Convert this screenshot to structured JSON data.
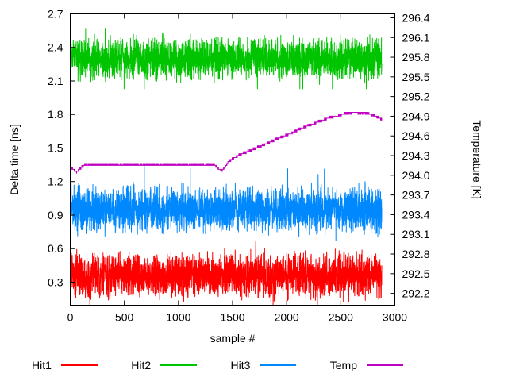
{
  "chart_data": {
    "type": "line",
    "title": "",
    "xlabel": "sample #",
    "ylabel_left": "Delta time [ns]",
    "ylabel_right": "Temperature [K]",
    "x_range": [
      0,
      3000
    ],
    "x_ticks": [
      0,
      500,
      1000,
      1500,
      2000,
      2500,
      3000
    ],
    "y_left_range": [
      0.094,
      2.7
    ],
    "y_left_ticks": [
      0.3,
      0.6,
      0.9,
      1.2,
      1.5,
      1.8,
      2.1,
      2.4,
      2.7
    ],
    "y_right_range": [
      292.02,
      296.46
    ],
    "y_right_ticks": [
      292.2,
      292.5,
      292.8,
      293.1,
      293.4,
      293.7,
      294.0,
      294.3,
      294.6,
      294.9,
      295.2,
      295.5,
      295.8,
      296.1,
      296.4
    ],
    "samples": 2880,
    "grid": false,
    "legend_position": "bottom",
    "axis_color": "#000000",
    "background": "#ffffff",
    "series": [
      {
        "name": "Hit1",
        "color": "#ff0000",
        "axis": "left",
        "kind": "noise",
        "mean": 0.36,
        "amp": 0.27,
        "min": 0.1,
        "max": 0.67
      },
      {
        "name": "Hit2",
        "color": "#00c400",
        "axis": "left",
        "kind": "noise",
        "mean": 2.3,
        "amp": 0.25,
        "min": 2.03,
        "max": 2.57
      },
      {
        "name": "Hit3",
        "color": "#0088ff",
        "axis": "left",
        "kind": "noise",
        "mean": 0.95,
        "amp": 0.27,
        "min": 0.67,
        "max": 1.37
      },
      {
        "name": "Temp",
        "color": "#c000c0",
        "axis": "right",
        "kind": "step",
        "quantize_K": 0.03,
        "keypoints": [
          [
            0,
            294.12
          ],
          [
            60,
            294.05
          ],
          [
            130,
            294.16
          ],
          [
            1330,
            294.16
          ],
          [
            1400,
            294.06
          ],
          [
            1470,
            294.22
          ],
          [
            1560,
            294.31
          ],
          [
            1680,
            294.39
          ],
          [
            1800,
            294.47
          ],
          [
            1920,
            294.56
          ],
          [
            2040,
            294.64
          ],
          [
            2160,
            294.73
          ],
          [
            2280,
            294.81
          ],
          [
            2400,
            294.88
          ],
          [
            2520,
            294.93
          ],
          [
            2620,
            294.96
          ],
          [
            2720,
            294.95
          ],
          [
            2800,
            294.92
          ],
          [
            2880,
            294.85
          ]
        ]
      }
    ]
  }
}
